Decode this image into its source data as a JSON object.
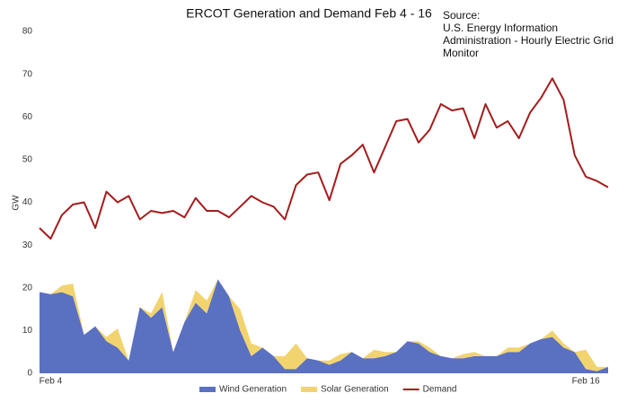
{
  "chart_data": {
    "type": "area_line",
    "title": "ERCOT Generation and Demand Feb 4 - 16",
    "annotation": [
      "Source:",
      "U.S. Energy Information",
      "Administration - Hourly Electric Grid",
      "Monitor"
    ],
    "y_label": "GW",
    "categories": [
      null,
      "Feb 4",
      null,
      null,
      null,
      null,
      null,
      null,
      null,
      null,
      null,
      null,
      null,
      null,
      null,
      null,
      null,
      null,
      null,
      null,
      null,
      null,
      null,
      null,
      null,
      null,
      null,
      null,
      null,
      null,
      null,
      null,
      null,
      null,
      null,
      null,
      null,
      null,
      null,
      null,
      null,
      null,
      null,
      null,
      null,
      null,
      null,
      null,
      null,
      "Feb 16",
      null,
      null
    ],
    "series": [
      {
        "name": "Wind Generation",
        "color": "#5a70c1",
        "kind": "stack",
        "values": [
          19,
          18.5,
          19,
          18,
          9,
          11,
          7.5,
          6,
          3,
          15.5,
          13,
          15.5,
          5,
          12,
          16.5,
          14,
          22,
          18,
          10,
          4,
          6,
          4,
          1,
          1,
          3.5,
          3,
          2,
          3,
          5,
          3.5,
          3.5,
          4,
          5,
          7.5,
          7,
          5,
          4,
          3.5,
          3.5,
          4,
          4,
          4,
          5,
          5,
          7,
          8,
          8.5,
          6,
          5,
          1,
          0.5,
          1.5
        ]
      },
      {
        "name": "Solar Generation",
        "color": "#f2d46f",
        "kind": "stack",
        "values": [
          0,
          0,
          1.5,
          3,
          0,
          0,
          1,
          4.5,
          0,
          0,
          1,
          3.5,
          0,
          0,
          3,
          3,
          0,
          0,
          5,
          3,
          0,
          0,
          3,
          6,
          0,
          0,
          1,
          1.5,
          0,
          0,
          2,
          1,
          0,
          0,
          0.5,
          1,
          0,
          0,
          1,
          1,
          0,
          0,
          1,
          1,
          0,
          0,
          1.5,
          1,
          0,
          4.5,
          1,
          0
        ]
      },
      {
        "name": "Demand",
        "color": "#a51c1c",
        "kind": "line",
        "values": [
          34,
          31.5,
          37,
          39.5,
          40,
          34,
          42.5,
          40,
          41.5,
          36,
          38,
          37.5,
          38,
          36.5,
          41,
          38,
          38,
          36.5,
          39,
          41.5,
          40,
          39,
          36,
          44,
          46.5,
          47,
          40.5,
          49,
          51,
          53.5,
          47,
          53,
          59,
          59.5,
          54,
          57,
          63,
          61.5,
          62,
          55,
          63,
          57.5,
          59,
          55,
          61,
          64.5,
          69,
          64,
          51,
          46,
          45,
          43.5
        ]
      }
    ],
    "ylim": [
      0,
      80
    ],
    "yticks": [
      0,
      10,
      20,
      30,
      40,
      50,
      60,
      70,
      80
    ],
    "legend": "bottom"
  }
}
